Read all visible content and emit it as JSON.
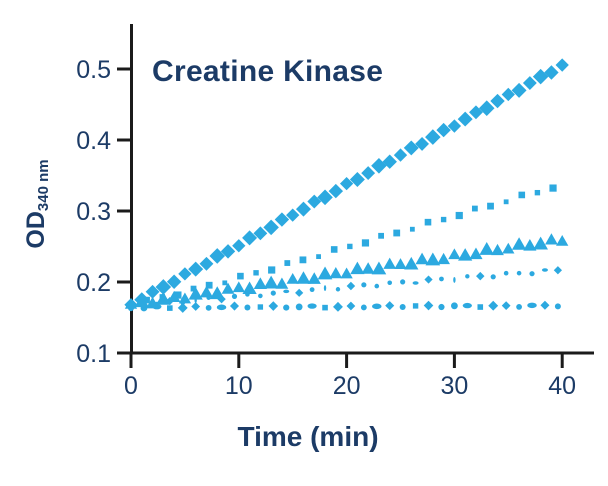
{
  "figure": {
    "title": "Creatine Kinase",
    "xlabel": "Time (min)",
    "ylabel_main": "OD",
    "ylabel_sub": "340 nm"
  },
  "colors": {
    "marker_blue": "#2ca9e0",
    "text_navy": "#1c3b66",
    "axis_black": "#1b1b1b",
    "background": "#ffffff"
  },
  "chart_data": {
    "type": "scatter",
    "title": "Creatine Kinase",
    "xlabel": "Time (min)",
    "ylabel": "OD 340 nm",
    "xlim": [
      0,
      40
    ],
    "ylim": [
      0.1,
      0.56
    ],
    "x_ticks": [
      0,
      10,
      20,
      30,
      40
    ],
    "y_ticks": [
      0.1,
      0.2,
      0.3,
      0.4,
      0.5
    ],
    "grid": false,
    "legend": "none",
    "sample_x_min": [
      0,
      5,
      10,
      15,
      20,
      25,
      30,
      35,
      40
    ],
    "series": [
      {
        "name": "series-1-diamond",
        "marker": "diamond",
        "values": [
          0.168,
          0.21,
          0.252,
          0.295,
          0.337,
          0.379,
          0.421,
          0.463,
          0.505
        ],
        "interval_min": 1.0,
        "sizes": [
          9.4,
          10.6,
          9.8,
          11,
          10.2
        ],
        "jitter": 1.1
      },
      {
        "name": "series-2-square",
        "marker": "square",
        "values": [
          0.168,
          0.186,
          0.206,
          0.227,
          0.249,
          0.271,
          0.293,
          0.315,
          0.337
        ],
        "interval_min": 1.45,
        "sizes": [
          4.8,
          6.6,
          5.4,
          7.2,
          5.8,
          6.8
        ],
        "jitter": 1.5
      },
      {
        "name": "series-3-triangle",
        "marker": "triangle",
        "values": [
          0.168,
          0.179,
          0.191,
          0.202,
          0.214,
          0.225,
          0.236,
          0.248,
          0.259
        ],
        "interval_min": 1.0,
        "sizes": [
          11.4,
          13.2,
          12.2,
          13.6,
          11.8
        ],
        "jitter": 1.9
      },
      {
        "name": "series-4-dotted",
        "marker": "pattern",
        "pattern": [
          "circle",
          "circle",
          "oval",
          "diamond",
          "circle",
          "vbar",
          "circle",
          "diamond",
          "circle",
          "circle"
        ],
        "values": [
          0.167,
          0.173,
          0.18,
          0.186,
          0.193,
          0.199,
          0.205,
          0.211,
          0.217
        ],
        "interval_min": 1.2,
        "sizes": [
          4.6,
          5.2,
          4.2,
          5.8,
          4.8,
          5.4,
          4.4,
          6,
          5.2,
          4.6
        ],
        "jitter": 1.5
      },
      {
        "name": "series-5-baseline",
        "marker": "pattern",
        "pattern": [
          "circle",
          "circle",
          "oval",
          "square",
          "diamond",
          "diamond",
          "circle",
          "oval",
          "diamond",
          "circle",
          "square",
          "diamond"
        ],
        "values": [
          0.164,
          0.164,
          0.165,
          0.165,
          0.165,
          0.166,
          0.166,
          0.166,
          0.167
        ],
        "interval_min": 1.2,
        "sizes": [
          6.2,
          6.8,
          6.4,
          5.6,
          7,
          6.2,
          5.8,
          6.6,
          6.4,
          6,
          5.4,
          6.8
        ],
        "jitter": 0.9
      }
    ]
  }
}
